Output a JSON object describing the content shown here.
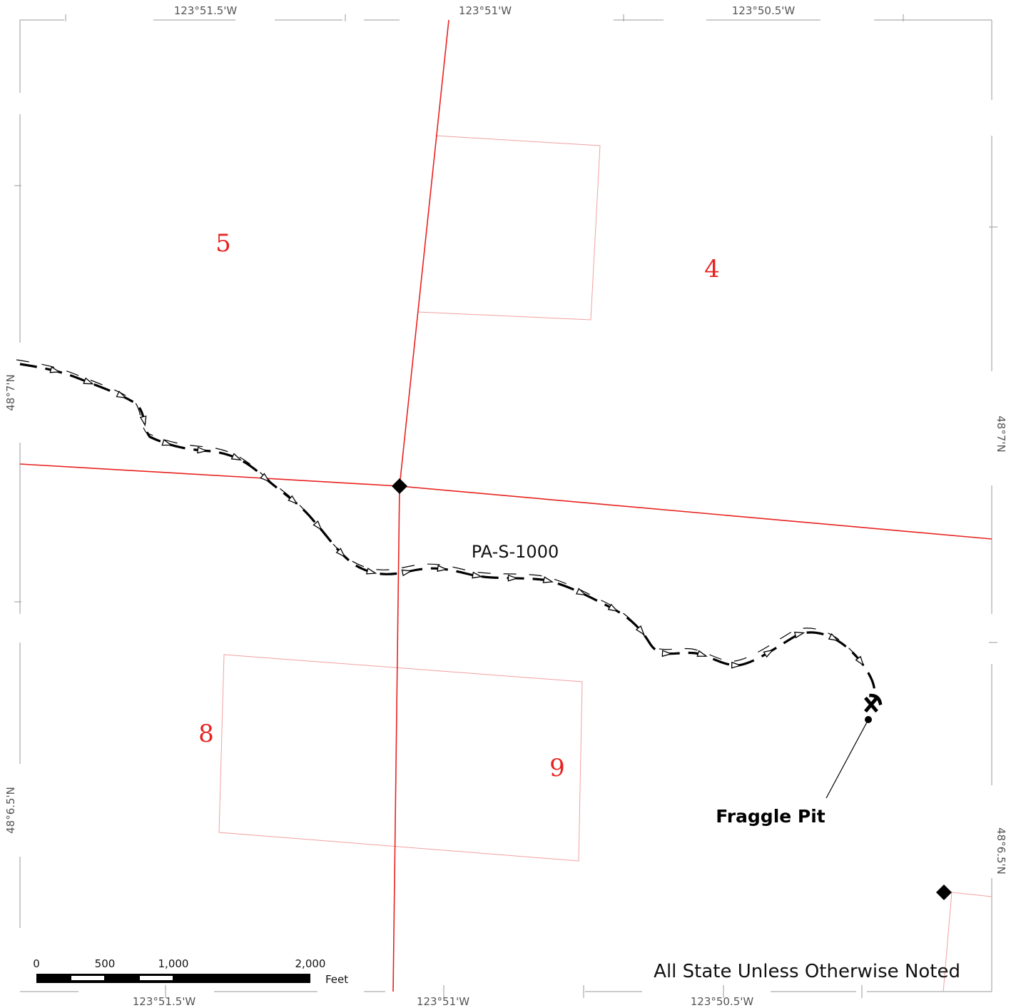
{
  "coords": {
    "top": [
      "123°51.5'W",
      "123°51'W",
      "123°50.5'W"
    ],
    "bottom": [
      "123°51.5'W",
      "123°51'W",
      "123°50.5'W"
    ],
    "left": [
      "48°7'N",
      "48°6.5'N"
    ],
    "right": [
      "48°7'N",
      "48°6.5'N"
    ]
  },
  "sections": [
    "5",
    "4",
    "8",
    "9"
  ],
  "road_label": "PA-S-1000",
  "pit_label": "Fraggle Pit",
  "note": "All State Unless Otherwise Noted",
  "scale": {
    "ticks": [
      "0",
      "500",
      "1,000",
      "2,000"
    ],
    "unit": "Feet"
  },
  "colors": {
    "section_line": "#e8221f",
    "parcel_line": "#f2a0a0",
    "section_text": "#e8221f",
    "road": "#000000"
  },
  "icons": [
    "corner-marker-icon",
    "pit-icon"
  ]
}
